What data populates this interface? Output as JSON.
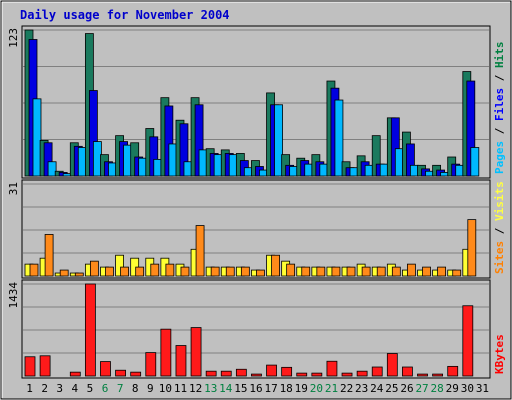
{
  "chart_data": {
    "type": "bar",
    "title": "Daily usage for November 2004",
    "days": [
      "1",
      "2",
      "3",
      "4",
      "5",
      "6",
      "7",
      "8",
      "9",
      "10",
      "11",
      "12",
      "13",
      "14",
      "15",
      "16",
      "17",
      "18",
      "19",
      "20",
      "21",
      "22",
      "23",
      "24",
      "25",
      "26",
      "27",
      "28",
      "29",
      "30",
      "31"
    ],
    "weekend_days": [
      "6",
      "7",
      "13",
      "14",
      "20",
      "21",
      "27",
      "28"
    ],
    "panels": [
      {
        "id": "top",
        "ymax_label": "123",
        "ymax": 123,
        "right_labels": [
          {
            "text": "Hits",
            "color": "#008040"
          },
          {
            "text": " / ",
            "color": "#000000"
          },
          {
            "text": "Files",
            "color": "#0000ff"
          },
          {
            "text": " / ",
            "color": "#000000"
          },
          {
            "text": "Pages",
            "color": "#00c0ff"
          }
        ],
        "series": [
          {
            "name": "Hits",
            "color": "#1a7a5e",
            "values": [
              123,
              30,
              4,
              28,
              120,
              18,
              34,
              28,
              40,
              66,
              47,
              66,
              23,
              22,
              19,
              13,
              70,
              18,
              15,
              18,
              80,
              12,
              17,
              34,
              49,
              37,
              9,
              9,
              16,
              88,
              0
            ]
          },
          {
            "name": "Files",
            "color": "#0000e0",
            "values": [
              115,
              28,
              3,
              25,
              72,
              12,
              29,
              16,
              33,
              59,
              44,
              60,
              19,
              19,
              13,
              8,
              60,
              9,
              13,
              12,
              74,
              7,
              12,
              10,
              49,
              27,
              6,
              5,
              10,
              80,
              0
            ]
          },
          {
            "name": "Pages",
            "color": "#00b8ff",
            "values": [
              65,
              12,
              2,
              24,
              29,
              11,
              26,
              15,
              14,
              27,
              12,
              22,
              18,
              18,
              7,
              5,
              60,
              8,
              10,
              10,
              64,
              7,
              9,
              10,
              23,
              9,
              4,
              3,
              9,
              24,
              0
            ]
          }
        ]
      },
      {
        "id": "middle",
        "ymax_label": "31",
        "ymax": 31,
        "right_labels": [
          {
            "text": "Visits",
            "color": "#ffff40"
          },
          {
            "text": " / ",
            "color": "#000000"
          },
          {
            "text": "Sites",
            "color": "#ff8000"
          }
        ],
        "series": [
          {
            "name": "Visits",
            "color": "#ffff33",
            "values": [
              4,
              6,
              1,
              1,
              4,
              3,
              7,
              6,
              6,
              6,
              4,
              9,
              3,
              3,
              3,
              2,
              7,
              5,
              3,
              3,
              3,
              3,
              4,
              3,
              4,
              2,
              2,
              2,
              2,
              9,
              0
            ]
          },
          {
            "name": "Sites",
            "color": "#ff8a1a",
            "values": [
              4,
              14,
              2,
              1,
              5,
              3,
              3,
              3,
              4,
              4,
              3,
              17,
              3,
              3,
              3,
              2,
              7,
              4,
              3,
              3,
              3,
              3,
              3,
              3,
              3,
              4,
              3,
              3,
              2,
              19,
              0
            ]
          }
        ]
      },
      {
        "id": "bottom",
        "ymax_label": "1434",
        "ymax": 1434,
        "right_labels": [
          {
            "text": "KBytes",
            "color": "#ff0000"
          }
        ],
        "series": [
          {
            "name": "KBytes",
            "color": "#ff1a1a",
            "values": [
              300,
              315,
              0,
              60,
              1434,
              225,
              90,
              60,
              365,
              730,
              475,
              755,
              75,
              75,
              105,
              30,
              170,
              135,
              45,
              45,
              230,
              45,
              75,
              140,
              350,
              140,
              30,
              30,
              150,
              1095,
              0
            ]
          }
        ]
      }
    ]
  }
}
